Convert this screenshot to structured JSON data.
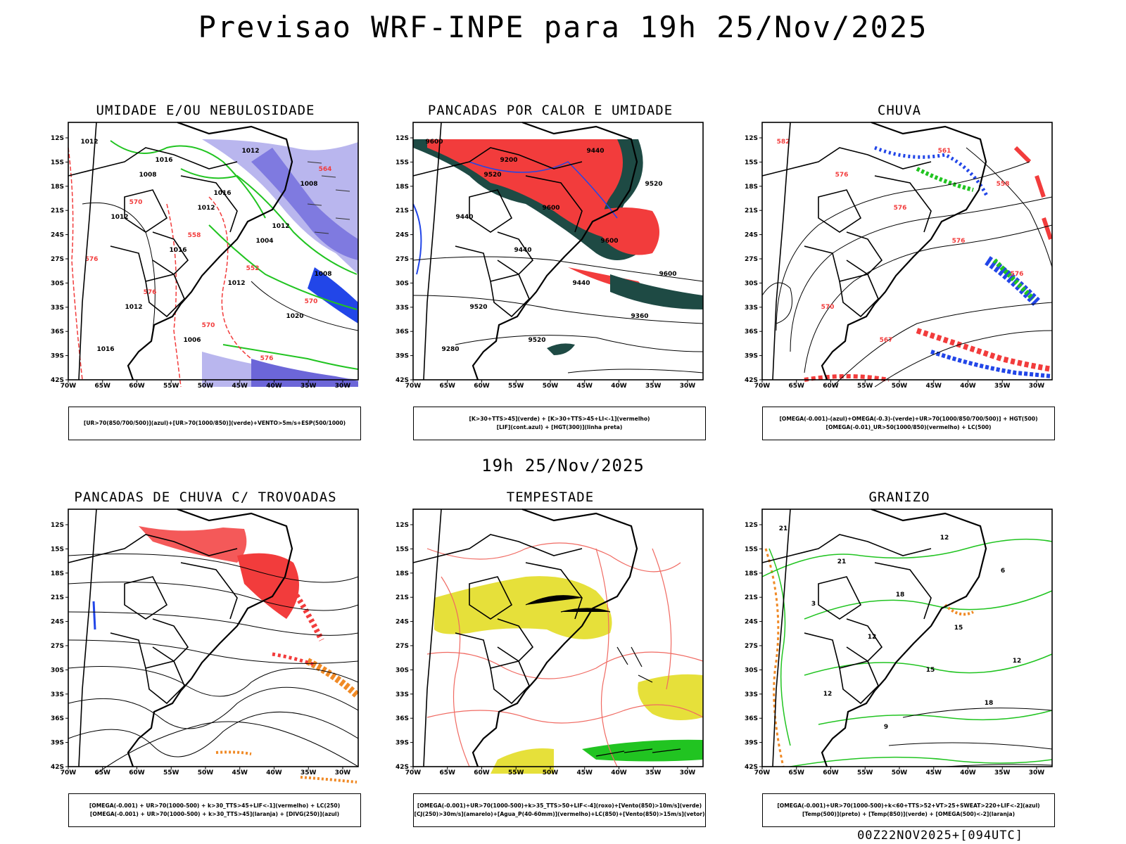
{
  "title": "Previsao WRF-INPE  para 19h 25/Nov/2025",
  "mid_title": "19h 25/Nov/2025",
  "footer": "00Z22NOV2025+[094UTC]",
  "axes": {
    "lat_labels": [
      "12S",
      "15S",
      "18S",
      "21S",
      "24S",
      "27S",
      "30S",
      "33S",
      "36S",
      "39S",
      "42S"
    ],
    "lon_labels": [
      "70W",
      "65W",
      "60W",
      "55W",
      "50W",
      "45W",
      "40W",
      "35W",
      "30W"
    ]
  },
  "colors": {
    "red": "#f23c3c",
    "green": "#21c421",
    "blue": "#2246e8",
    "lavender": "#b9b6ee",
    "dark_teal": "#1e4a44",
    "yellow": "#e6e03a",
    "orange": "#f08a26",
    "salmon": "#f06a62"
  },
  "panels": [
    {
      "title": "UMIDADE E/OU NEBULOSIDADE",
      "legend": [
        "[UR>70(850/700/500)](azul)+[UR>70(1000/850)](verde)+VENTO>5m/s+ESP(500/1000)"
      ],
      "contour_labels": [
        "1012",
        "1008",
        "1012",
        "1004",
        "1008",
        "1012",
        "1006",
        "1012",
        "1008",
        "1012",
        "1016",
        "1012",
        "1020",
        "1016",
        "1016",
        "1016",
        "1012",
        "576",
        "576",
        "570",
        "576",
        "564",
        "570",
        "558",
        "552",
        "570"
      ]
    },
    {
      "title": "PANCADAS POR CALOR E UMIDADE",
      "legend": [
        "[K>30+TTS>45](verde)  +  [K>30+TTS>45+LI<-1](vermelho)",
        "[LIF](cont.azul)  +  [HGT(300)](linha preta)"
      ],
      "contour_labels": [
        "9600",
        "9520",
        "9600",
        "9600",
        "9600",
        "9520",
        "9520",
        "9440",
        "9520",
        "9440",
        "9440",
        "9440",
        "9360",
        "9280",
        "9200"
      ]
    },
    {
      "title": "CHUVA",
      "legend": [
        "[OMEGA(-0.001)-(azul)+OMEGA(-0.3)-(verde)+UR>70(1000/850/700/500)]  +  HGT(500)",
        "[OMEGA(-0.01)_UR>50(1000/850)(vermelho)  +  LC(500)"
      ],
      "contour_labels": [
        "582",
        "576",
        "576",
        "576",
        "576",
        "570",
        "567",
        "561",
        "558"
      ]
    },
    {
      "title": "PANCADAS DE CHUVA C/ TROVOADAS",
      "legend": [
        "[OMEGA(-0.001)  +  UR>70(1000-500)  +  k>30_TTS>45+LIF<-1](vermelho)  +  LC(250)",
        "[OMEGA(-0.001)  +  UR>70(1000-500)  +  k>30_TTS>45](laranja)  +  [DIVG(250)](azul)"
      ],
      "contour_labels": []
    },
    {
      "title": "TEMPESTADE",
      "legend": [
        "[OMEGA(-0.001)+UR>70(1000-500)+k>35_TTS>50+LIF<-4](roxo)+[Vento(850)>10m/s](verde)",
        "[CJ(250)>30m/s](amarelo)+[Agua_P(40-60mm)](vermelho)+LC(850)+[Vento(850)>15m/s](vetor)"
      ],
      "contour_labels": []
    },
    {
      "title": "GRANIZO",
      "legend": [
        "[OMEGA(-0.001)+UR>70(1000-500)+k<60+TTS>52+VT>25+SWEAT>220+LIF<-2](azul)",
        "[Temp(500)](preto)  +  [Temp(850)](verde)  +  [OMEGA(500)<-2](laranja)"
      ],
      "contour_labels": [
        "21",
        "21",
        "18",
        "15",
        "12",
        "12",
        "9",
        "12",
        "6",
        "3",
        "12",
        "15",
        "18"
      ]
    }
  ]
}
